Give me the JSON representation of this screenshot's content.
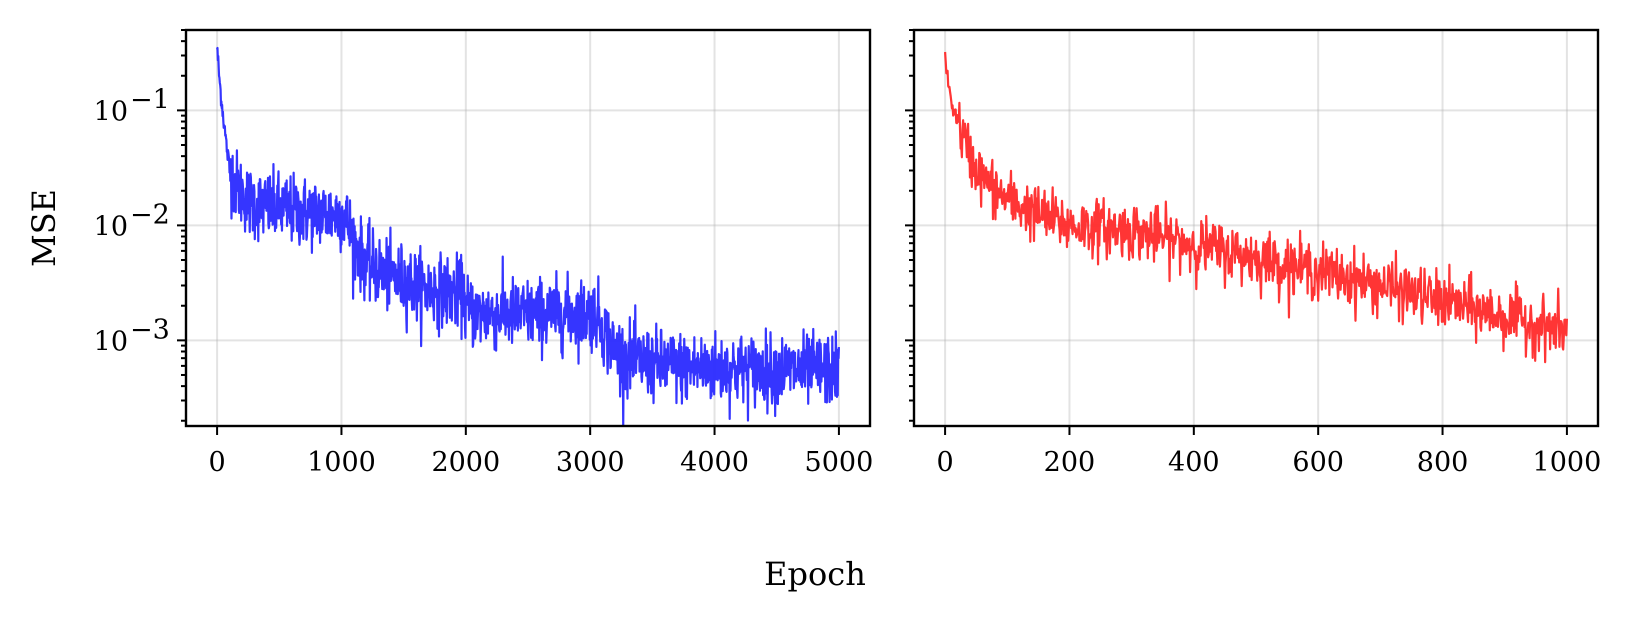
{
  "chart_data": {
    "type": "line",
    "xlabel": "Epoch",
    "ylabel": "MSE",
    "yscale": "log",
    "sharey": true,
    "grid": true,
    "panels": [
      {
        "xlim": [
          -250,
          5250
        ],
        "ylim": [
          0.00018,
          0.5
        ],
        "xticks": [
          0,
          1000,
          2000,
          3000,
          4000,
          5000
        ],
        "xtick_labels": [
          "0",
          "1000",
          "2000",
          "3000",
          "4000",
          "5000"
        ],
        "yticks": [
          0.1,
          0.01,
          0.001
        ],
        "ytick_labels": [
          "10",
          "10",
          "10"
        ],
        "ytick_exponents": [
          "−1",
          "−2",
          "−3"
        ],
        "series": [
          {
            "color": "#2a2aff",
            "x": [
              0,
              20,
              40,
              60,
              80,
              100,
              130,
              160,
              200,
              260,
              330,
              400,
              500,
              600,
              700,
              800,
              900,
              1000,
              1040,
              1070,
              1100,
              1130,
              1170,
              1220,
              1300,
              1400,
              1500,
              1600,
              1700,
              1800,
              1900,
              1980,
              2000,
              2030,
              2100,
              2300,
              2500,
              2700,
              2900,
              3050,
              3100,
              3150,
              3200,
              3300,
              3400,
              3600,
              3800,
              4000,
              4200,
              4400,
              4600,
              4800,
              5000
            ],
            "y": [
              0.35,
              0.18,
              0.11,
              0.07,
              0.045,
              0.032,
              0.026,
              0.022,
              0.019,
              0.016,
              0.015,
              0.0145,
              0.014,
              0.0135,
              0.013,
              0.0128,
              0.0125,
              0.0125,
              0.011,
              0.009,
              0.0075,
              0.006,
              0.0052,
              0.0045,
              0.004,
              0.0036,
              0.0033,
              0.003,
              0.0028,
              0.0027,
              0.0026,
              0.0025,
              0.0019,
              0.0018,
              0.0017,
              0.0017,
              0.0017,
              0.0017,
              0.0017,
              0.0017,
              0.0013,
              0.001,
              0.0008,
              0.0007,
              0.00065,
              0.0006,
              0.00058,
              0.00057,
              0.00056,
              0.00055,
              0.00055,
              0.00055,
              0.00055
            ],
            "noise": 0.35,
            "samples": 1600
          }
        ]
      },
      {
        "xlim": [
          -50,
          1050
        ],
        "ylim": [
          0.00018,
          0.5
        ],
        "xticks": [
          0,
          200,
          400,
          600,
          800,
          1000
        ],
        "xtick_labels": [
          "0",
          "200",
          "400",
          "600",
          "800",
          "1000"
        ],
        "yticks": [
          0.1,
          0.01,
          0.001
        ],
        "series": [
          {
            "color": "#ff2a2a",
            "x": [
              0,
              5,
              10,
              20,
              30,
              45,
              60,
              80,
              100,
              130,
              160,
              200,
              250,
              300,
              400,
              500,
              600,
              700,
              800,
              900,
              1000
            ],
            "y": [
              0.3,
              0.17,
              0.12,
              0.08,
              0.055,
              0.035,
              0.026,
              0.02,
              0.017,
              0.014,
              0.012,
              0.01,
              0.0095,
              0.009,
              0.0068,
              0.0052,
              0.004,
              0.003,
              0.0022,
              0.0016,
              0.0012
            ],
            "noise": 0.28,
            "samples": 1000
          }
        ]
      }
    ]
  }
}
